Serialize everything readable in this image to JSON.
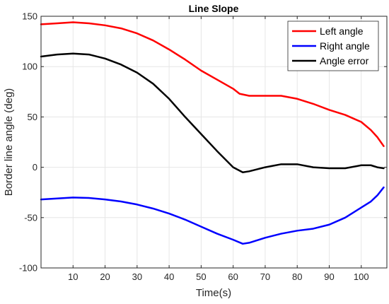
{
  "chart_data": {
    "type": "line",
    "title": "Line Slope",
    "xlabel": "Time(s)",
    "ylabel": "Border line angle (deg)",
    "xlim": [
      0,
      108
    ],
    "ylim": [
      -100,
      150
    ],
    "x_ticks": [
      10,
      20,
      30,
      40,
      50,
      60,
      70,
      80,
      90,
      100
    ],
    "y_ticks": [
      -100,
      -50,
      0,
      50,
      100,
      150
    ],
    "grid": true,
    "legend_position": "top-right",
    "series": [
      {
        "name": "Left angle",
        "color": "#ff0000",
        "x": [
          0,
          5,
          10,
          15,
          20,
          25,
          30,
          35,
          40,
          45,
          50,
          55,
          60,
          62,
          65,
          70,
          75,
          80,
          85,
          90,
          95,
          100,
          103,
          105,
          107
        ],
        "y": [
          142,
          143,
          144,
          143,
          141,
          138,
          133,
          126,
          117,
          107,
          96,
          87,
          78,
          73,
          71,
          71,
          71,
          68,
          63,
          57,
          52,
          45,
          37,
          30,
          21
        ]
      },
      {
        "name": "Right angle",
        "color": "#0000ff",
        "x": [
          0,
          5,
          10,
          15,
          20,
          25,
          30,
          35,
          40,
          45,
          50,
          55,
          60,
          63,
          65,
          70,
          75,
          80,
          85,
          90,
          95,
          100,
          103,
          105,
          107
        ],
        "y": [
          -32,
          -31,
          -30,
          -30.5,
          -32,
          -34,
          -37,
          -41,
          -46,
          -52,
          -59,
          -66,
          -72,
          -76,
          -75,
          -70,
          -66,
          -63,
          -61,
          -57,
          -50,
          -40,
          -34,
          -28,
          -20
        ]
      },
      {
        "name": "Angle error",
        "color": "#000000",
        "x": [
          0,
          5,
          10,
          15,
          20,
          25,
          30,
          35,
          40,
          45,
          50,
          55,
          60,
          63,
          65,
          70,
          75,
          80,
          85,
          90,
          95,
          100,
          103,
          105,
          107
        ],
        "y": [
          110,
          112,
          113,
          112,
          108,
          102,
          94,
          83,
          68,
          50,
          33,
          16,
          0,
          -5,
          -4,
          0,
          3,
          3,
          0,
          -1,
          -1,
          2,
          2,
          0,
          -1
        ]
      }
    ]
  }
}
